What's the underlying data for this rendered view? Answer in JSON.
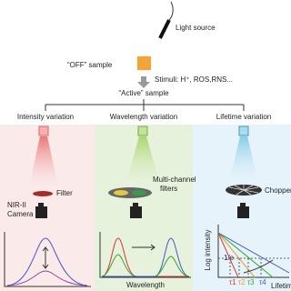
{
  "header": {
    "light_source": "Light source",
    "off_sample": "“OFF” sample",
    "stimuli": "Stimuli: H⁺, ROS,RNS...",
    "active_sample": "“Active” sample"
  },
  "panels": [
    {
      "title": "Intensity variation",
      "component": "Filter",
      "camera": [
        "NIR-II",
        "Camera"
      ]
    },
    {
      "title": "Wavelength variation",
      "component": [
        "Multi-channel",
        "filters"
      ],
      "x_label": "Wavelength"
    },
    {
      "title": "Lifetime variation",
      "component": "Chopper",
      "y_label": "Log intensity",
      "marker": "1/e",
      "x_label": "Lifetime",
      "taus": [
        "τ1",
        "τ2",
        "τ3",
        "τ4"
      ]
    }
  ]
}
